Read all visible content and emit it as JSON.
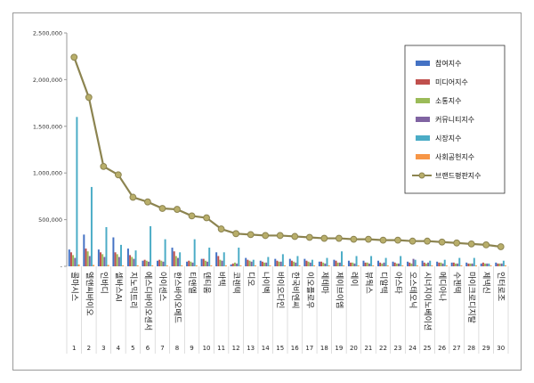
{
  "chart_data": {
    "type": "bar",
    "title": "",
    "xlabel": "",
    "ylabel": "",
    "ylim": [
      0,
      2500000
    ],
    "yticks": [
      "2,500,000",
      "2,000,000",
      "1,500,000",
      "1,000,000",
      "500,000",
      "-"
    ],
    "grid": false,
    "legend_position": "right",
    "categories": [
      "콜마시스",
      "엘앤씨바이오",
      "인바디",
      "셀바스AI",
      "지노믹트리",
      "에스디바이오센서",
      "아이센스",
      "한스바이오메드",
      "티앤엘",
      "덴티움",
      "바텍",
      "코렌텍",
      "디오",
      "나이벡",
      "바이오다인",
      "한국비엔씨",
      "이오플로우",
      "제테마",
      "제이브이엠",
      "레이",
      "뷰웍스",
      "디알텍",
      "아스타",
      "오스테오닉",
      "시너지이노베이션",
      "메디아나",
      "수젠텍",
      "마이크로디지탈",
      "제넥신",
      "인터로조"
    ],
    "ranks": [
      "1",
      "2",
      "3",
      "4",
      "5",
      "6",
      "7",
      "8",
      "9",
      "10",
      "11",
      "12",
      "13",
      "14",
      "15",
      "16",
      "17",
      "18",
      "19",
      "20",
      "21",
      "22",
      "23",
      "24",
      "25",
      "26",
      "27",
      "28",
      "29",
      "30"
    ],
    "series": [
      {
        "name": "참여지수",
        "color": "#4472c4",
        "values": [
          180000,
          340000,
          180000,
          310000,
          190000,
          60000,
          60000,
          200000,
          50000,
          80000,
          150000,
          20000,
          90000,
          60000,
          80000,
          80000,
          80000,
          50000,
          70000,
          60000,
          60000,
          60000,
          50000,
          50000,
          60000,
          50000,
          40000,
          40000,
          30000,
          40000
        ]
      },
      {
        "name": "미디어지수",
        "color": "#c0504d",
        "values": [
          150000,
          190000,
          150000,
          150000,
          120000,
          70000,
          70000,
          160000,
          60000,
          80000,
          110000,
          30000,
          70000,
          50000,
          60000,
          60000,
          60000,
          50000,
          60000,
          40000,
          40000,
          40000,
          40000,
          40000,
          40000,
          40000,
          40000,
          30000,
          40000,
          30000
        ]
      },
      {
        "name": "소통지수",
        "color": "#9bbb59",
        "values": [
          120000,
          160000,
          130000,
          130000,
          100000,
          60000,
          60000,
          110000,
          50000,
          60000,
          70000,
          40000,
          60000,
          40000,
          50000,
          50000,
          50000,
          40000,
          40000,
          40000,
          40000,
          30000,
          30000,
          30000,
          30000,
          40000,
          30000,
          30000,
          30000,
          30000
        ]
      },
      {
        "name": "커뮤니티지수",
        "color": "#8064a2",
        "values": [
          90000,
          110000,
          100000,
          100000,
          80000,
          50000,
          50000,
          90000,
          40000,
          50000,
          60000,
          30000,
          50000,
          40000,
          50000,
          40000,
          40000,
          30000,
          40000,
          30000,
          30000,
          40000,
          30000,
          80000,
          40000,
          30000,
          30000,
          30000,
          30000,
          30000
        ]
      },
      {
        "name": "시장지수",
        "color": "#4bacc6",
        "values": [
          1600000,
          850000,
          420000,
          230000,
          170000,
          430000,
          290000,
          150000,
          290000,
          200000,
          150000,
          200000,
          70000,
          100000,
          130000,
          110000,
          70000,
          90000,
          160000,
          110000,
          110000,
          90000,
          110000,
          70000,
          60000,
          70000,
          90000,
          90000,
          30000,
          60000
        ]
      },
      {
        "name": "사회공헌지수",
        "color": "#f79646",
        "values": [
          20000,
          15000,
          15000,
          10000,
          10000,
          10000,
          10000,
          10000,
          10000,
          10000,
          10000,
          10000,
          10000,
          10000,
          10000,
          10000,
          10000,
          10000,
          10000,
          10000,
          10000,
          10000,
          10000,
          10000,
          10000,
          10000,
          10000,
          10000,
          10000,
          10000
        ]
      }
    ],
    "line": {
      "name": "브랜드평판지수",
      "color": "#8c8450",
      "marker_color": "#b8ae6a",
      "values": [
        2240000,
        1810000,
        1070000,
        980000,
        740000,
        690000,
        620000,
        610000,
        540000,
        520000,
        400000,
        350000,
        340000,
        330000,
        330000,
        320000,
        310000,
        300000,
        300000,
        290000,
        290000,
        280000,
        280000,
        270000,
        270000,
        260000,
        250000,
        240000,
        230000,
        210000
      ]
    }
  }
}
